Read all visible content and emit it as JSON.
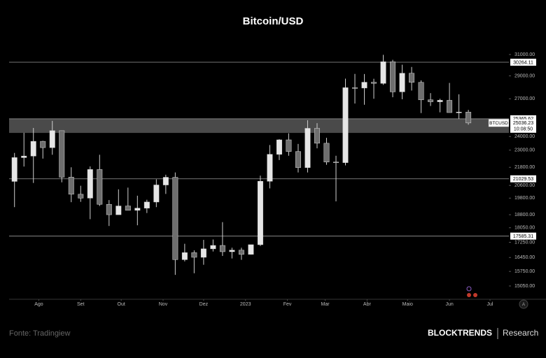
{
  "chart_data": {
    "type": "candlestick",
    "title": "Bitcoin/USD",
    "symbol": "BTCUSD",
    "countdown": "10:08:50",
    "log_scale": true,
    "up_color": "#e6e6e6",
    "down_color": "#6e6e6e",
    "x": [
      3,
      10,
      17,
      24,
      31,
      38,
      45,
      52,
      59,
      66,
      73,
      80,
      87,
      94,
      101,
      108,
      115,
      122,
      129,
      136,
      143,
      150,
      157,
      164,
      171,
      178,
      185,
      192,
      199,
      206,
      213,
      220,
      227,
      234,
      241,
      248,
      255,
      262,
      269,
      276,
      283,
      290,
      297,
      304,
      311,
      318,
      325,
      332,
      339
    ],
    "open": [
      20860,
      22470,
      22580,
      23640,
      23180,
      24440,
      21140,
      20040,
      19800,
      21650,
      19420,
      18800,
      19320,
      19060,
      19190,
      19560,
      20630,
      21130,
      16340,
      16700,
      16460,
      16900,
      17080,
      16750,
      16830,
      16610,
      17120,
      20870,
      22700,
      23750,
      22900,
      21780,
      24620,
      23500,
      22160,
      22120,
      27950,
      27920,
      28430,
      28330,
      30310,
      27590,
      29240,
      28420,
      26910,
      26750,
      26870,
      25860,
      25900
    ],
    "high": [
      22800,
      24280,
      24650,
      23680,
      25200,
      24450,
      21800,
      20580,
      21860,
      22670,
      19680,
      20350,
      20460,
      19950,
      19700,
      21000,
      21300,
      21450,
      17170,
      16820,
      17380,
      17400,
      18370,
      16960,
      16960,
      17050,
      21240,
      23370,
      23800,
      24240,
      23450,
      25250,
      25020,
      23900,
      22600,
      28750,
      29180,
      29170,
      28740,
      30970,
      30490,
      30030,
      29820,
      28600,
      27480,
      27000,
      28370,
      27380,
      26080
    ],
    "low": [
      19250,
      21850,
      20760,
      22400,
      22670,
      20800,
      19550,
      19570,
      18540,
      19320,
      18150,
      18850,
      19060,
      18190,
      18900,
      19250,
      20060,
      15580,
      16250,
      15660,
      16080,
      16760,
      16530,
      16400,
      16330,
      16600,
      17050,
      20410,
      22300,
      22600,
      21450,
      21450,
      23130,
      21970,
      19600,
      21930,
      26600,
      26500,
      27000,
      28200,
      27130,
      26960,
      27700,
      25820,
      26400,
      25880,
      25860,
      25350,
      24900
    ],
    "close": [
      22470,
      22580,
      23640,
      23180,
      24440,
      21140,
      20040,
      19800,
      21650,
      19420,
      18800,
      19320,
      19060,
      19190,
      19560,
      20630,
      21130,
      16340,
      16700,
      16460,
      16900,
      17080,
      16750,
      16830,
      16610,
      17120,
      20870,
      22700,
      23750,
      22900,
      21780,
      24620,
      23500,
      22160,
      22120,
      27950,
      27920,
      28430,
      28330,
      30310,
      27590,
      29240,
      28420,
      26910,
      26750,
      26870,
      25860,
      25900,
      25036.23
    ],
    "xlim": [
      -1,
      369
    ],
    "xticks": [
      {
        "value": 21,
        "label": "Ago"
      },
      {
        "value": 52,
        "label": "Set"
      },
      {
        "value": 82,
        "label": "Out"
      },
      {
        "value": 113,
        "label": "Nov"
      },
      {
        "value": 143,
        "label": "Dez"
      },
      {
        "value": 174,
        "label": "2023"
      },
      {
        "value": 205,
        "label": "Fev"
      },
      {
        "value": 233,
        "label": "Mar"
      },
      {
        "value": 264,
        "label": "Abr"
      },
      {
        "value": 294,
        "label": "Maio"
      },
      {
        "value": 325,
        "label": "Jun"
      },
      {
        "value": 355,
        "label": "Jul"
      }
    ],
    "ylim": [
      14470,
      31890
    ],
    "yticks": [
      {
        "value": 31000,
        "label": "31000.00"
      },
      {
        "value": 29000,
        "label": "29000.00"
      },
      {
        "value": 27000,
        "label": "27000.00"
      },
      {
        "value": 24000,
        "label": "24000.00"
      },
      {
        "value": 23000,
        "label": "23000.00"
      },
      {
        "value": 21800,
        "label": "21800.00"
      },
      {
        "value": 20600,
        "label": "20600.00"
      },
      {
        "value": 19800,
        "label": "19800.00"
      },
      {
        "value": 18800,
        "label": "18800.00"
      },
      {
        "value": 18050,
        "label": "18050.00"
      },
      {
        "value": 17250,
        "label": "17250.00"
      },
      {
        "value": 16450,
        "label": "16450.00"
      },
      {
        "value": 15750,
        "label": "15750.00"
      },
      {
        "value": 15050,
        "label": "15050.00"
      }
    ],
    "levels": [
      30264.11,
      25365.62,
      21029.53,
      17585.31
    ],
    "zone": [
      24270,
      25365.62
    ],
    "zone_color": "#4a4a4a"
  },
  "footer": {
    "source": "Fonte: Tradingiew",
    "brand": "BLOCKTRENDS",
    "section": "Research"
  }
}
